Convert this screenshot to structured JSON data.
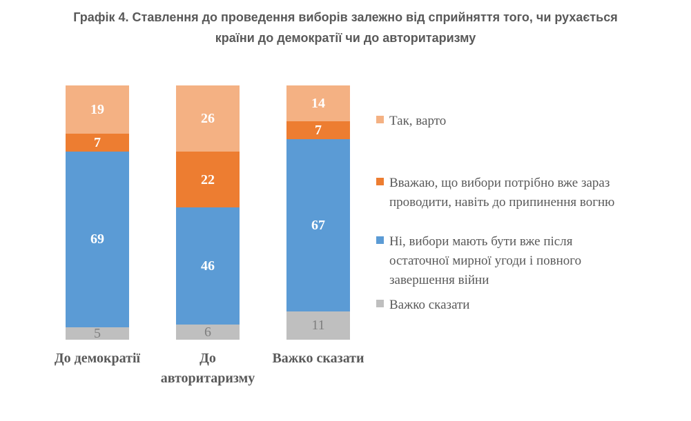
{
  "title": {
    "line1": "Графік 4. Ставлення до проведення виборів залежно від сприйняття того, чи рухається",
    "line2": "країни до демократії чи до авторитаризму"
  },
  "chart_data": {
    "type": "bar",
    "stacked": true,
    "orientation": "vertical",
    "unit": "percent",
    "value_labels": true,
    "grid": false,
    "axes_shown": false,
    "legend_position": "right",
    "text_color": "#595959",
    "categories": [
      "До демократії",
      "До авторитаризму",
      "Важко сказати"
    ],
    "series": [
      {
        "name": "Так, варто",
        "color": "#F4B183",
        "label_color": "#FFFFFF",
        "label_bold": true,
        "values": [
          19,
          26,
          14
        ]
      },
      {
        "name": "Вважаю, що вибори потрібно вже зараз проводити, навіть до припинення вогню",
        "color": "#ED7D31",
        "label_color": "#FFFFFF",
        "label_bold": true,
        "values": [
          7,
          22,
          7
        ]
      },
      {
        "name": "Ні, вибори мають бути вже після остаточної мирної угоди і повного завершення війни",
        "color": "#5B9BD5",
        "label_color": "#FFFFFF",
        "label_bold": true,
        "values": [
          69,
          46,
          67
        ]
      },
      {
        "name": "Важко сказати",
        "color": "#BFBFBF",
        "label_color": "#7F7F7F",
        "label_bold": false,
        "values": [
          5,
          6,
          11
        ]
      }
    ]
  }
}
